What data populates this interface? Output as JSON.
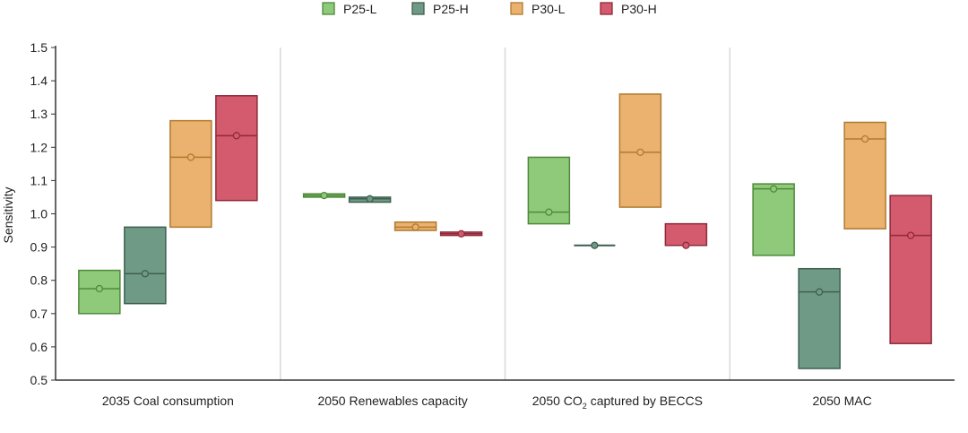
{
  "chart_data": {
    "type": "box-range",
    "title": "",
    "ylabel": "Sensitivity",
    "xlabel": "",
    "ylim": [
      0.5,
      1.5
    ],
    "yticks": [
      "0.5",
      "0.6",
      "0.7",
      "0.8",
      "0.9",
      "1.0",
      "1.1",
      "1.2",
      "1.3",
      "1.4",
      "1.5"
    ],
    "legend_position": "top-center",
    "series": [
      {
        "name": "P25-L",
        "fill": "#8fc97a",
        "stroke": "#4f8a3a"
      },
      {
        "name": "P25-H",
        "fill": "#6f9a86",
        "stroke": "#3f5f50"
      },
      {
        "name": "P30-L",
        "fill": "#eab26e",
        "stroke": "#b07a30"
      },
      {
        "name": "P30-H",
        "fill": "#d45a6e",
        "stroke": "#8e2a3a"
      }
    ],
    "categories": [
      {
        "label": "2035 Coal consumption",
        "label_parts": [
          "2035 Coal consumption"
        ],
        "ranges": [
          {
            "low": 0.7,
            "high": 0.83,
            "mid": 0.775
          },
          {
            "low": 0.73,
            "high": 0.96,
            "mid": 0.82
          },
          {
            "low": 0.96,
            "high": 1.28,
            "mid": 1.17
          },
          {
            "low": 1.04,
            "high": 1.355,
            "mid": 1.235
          }
        ]
      },
      {
        "label": "2050 Renewables capacity",
        "label_parts": [
          "2050 Renewables capacity"
        ],
        "ranges": [
          {
            "low": 1.05,
            "high": 1.06,
            "mid": 1.055
          },
          {
            "low": 1.035,
            "high": 1.05,
            "mid": 1.045
          },
          {
            "low": 0.95,
            "high": 0.975,
            "mid": 0.96
          },
          {
            "low": 0.935,
            "high": 0.945,
            "mid": 0.94
          }
        ]
      },
      {
        "label": "2050 CO2 captured by BECCS",
        "label_parts": [
          "2050 CO",
          "2",
          " captured by BECCS"
        ],
        "ranges": [
          {
            "low": 0.97,
            "high": 1.17,
            "mid": 1.005
          },
          {
            "low": 0.905,
            "high": 0.905,
            "mid": 0.905
          },
          {
            "low": 1.02,
            "high": 1.36,
            "mid": 1.185
          },
          {
            "low": 0.905,
            "high": 0.97,
            "mid": 0.905
          }
        ]
      },
      {
        "label": "2050 MAC",
        "label_parts": [
          "2050 MAC"
        ],
        "ranges": [
          {
            "low": 0.875,
            "high": 1.09,
            "mid": 1.075
          },
          {
            "low": 0.535,
            "high": 0.835,
            "mid": 0.765
          },
          {
            "low": 0.955,
            "high": 1.275,
            "mid": 1.225
          },
          {
            "low": 0.61,
            "high": 1.055,
            "mid": 0.935
          }
        ]
      }
    ]
  }
}
